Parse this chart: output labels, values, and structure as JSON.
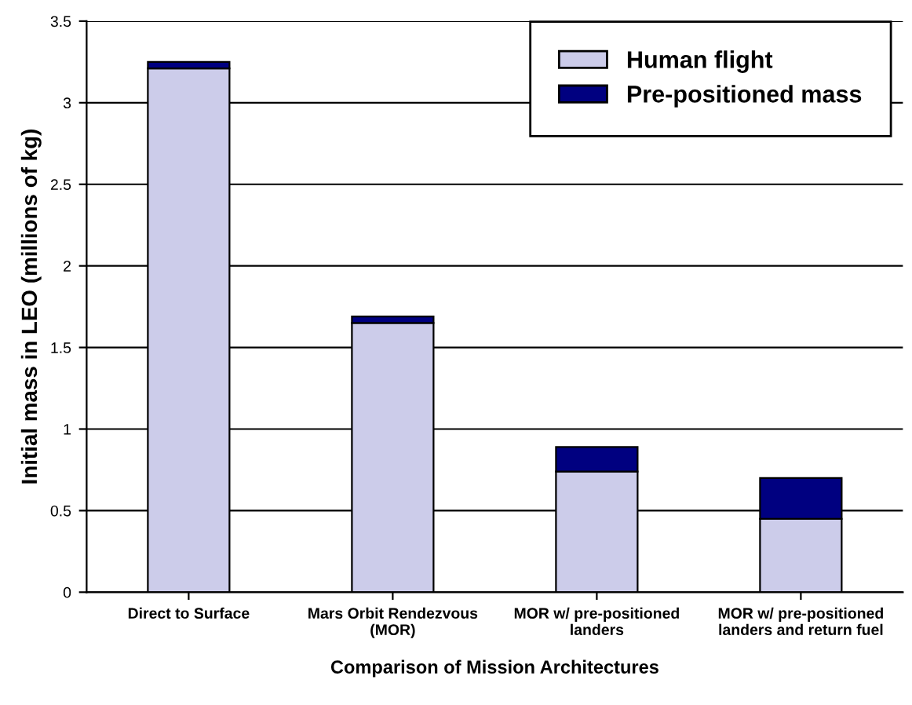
{
  "chart_data": {
    "type": "bar",
    "stacked": true,
    "xlabel": "Comparison of Mission Architectures",
    "ylabel": "Initial mass in LEO (millions of kg)",
    "categories": [
      "Direct to Surface",
      "Mars Orbit Rendezvous\n(MOR)",
      "MOR w/ pre-positioned\nlanders",
      "MOR w/ pre-positioned\nlanders and return fuel"
    ],
    "series": [
      {
        "name": "Human flight",
        "color": "#ccccea",
        "values": [
          3.21,
          1.65,
          0.74,
          0.45
        ]
      },
      {
        "name": "Pre-positioned mass",
        "color": "#000080",
        "values": [
          0.04,
          0.04,
          0.15,
          0.25
        ]
      }
    ],
    "ylim": [
      0,
      3.5
    ],
    "yticks": [
      0,
      0.5,
      1,
      1.5,
      2,
      2.5,
      3,
      3.5
    ],
    "grid": "y",
    "legend": "top right"
  }
}
